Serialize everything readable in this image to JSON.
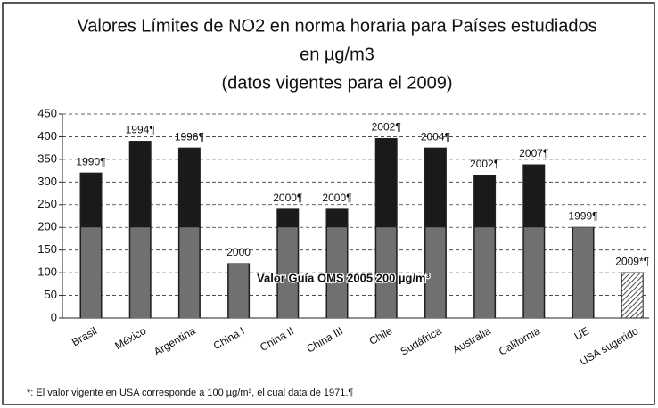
{
  "chart_data": {
    "type": "bar",
    "title": [
      "Valores Límites de NO2 en norma horaria para Países estudiados",
      "en µg/m3",
      "(datos vigentes para el 2009)"
    ],
    "categories": [
      "Brasil",
      "México",
      "Argentina",
      "China I",
      "China II",
      "China III",
      "Chile",
      "Sudáfrica",
      "Australia",
      "California",
      "UE",
      "USA sugerido"
    ],
    "values": [
      320,
      390,
      375,
      120,
      240,
      240,
      396,
      375,
      315,
      338,
      200,
      100
    ],
    "bar_labels": [
      "1990¶",
      "1994¶",
      "1996¶",
      "2000",
      "2000¶",
      "2000¶",
      "2002¶",
      "2004¶",
      "2002¶",
      "2007¶",
      "1999¶",
      "2009*¶"
    ],
    "hatched": [
      false,
      false,
      false,
      false,
      false,
      false,
      false,
      false,
      false,
      false,
      false,
      true
    ],
    "color": "#1a1a1a",
    "guide_color": "#707070",
    "guide_value": 200,
    "guide_label": "Valor Guía OMS 2005 200 µg/m³",
    "ylim": [
      0,
      450
    ],
    "yticks": [
      0,
      50,
      100,
      150,
      200,
      250,
      300,
      350,
      400,
      450
    ],
    "grid": true,
    "footnote": "*: El valor vigente en USA corresponde a 100 µg/m³, el cual data de 1971.¶"
  }
}
